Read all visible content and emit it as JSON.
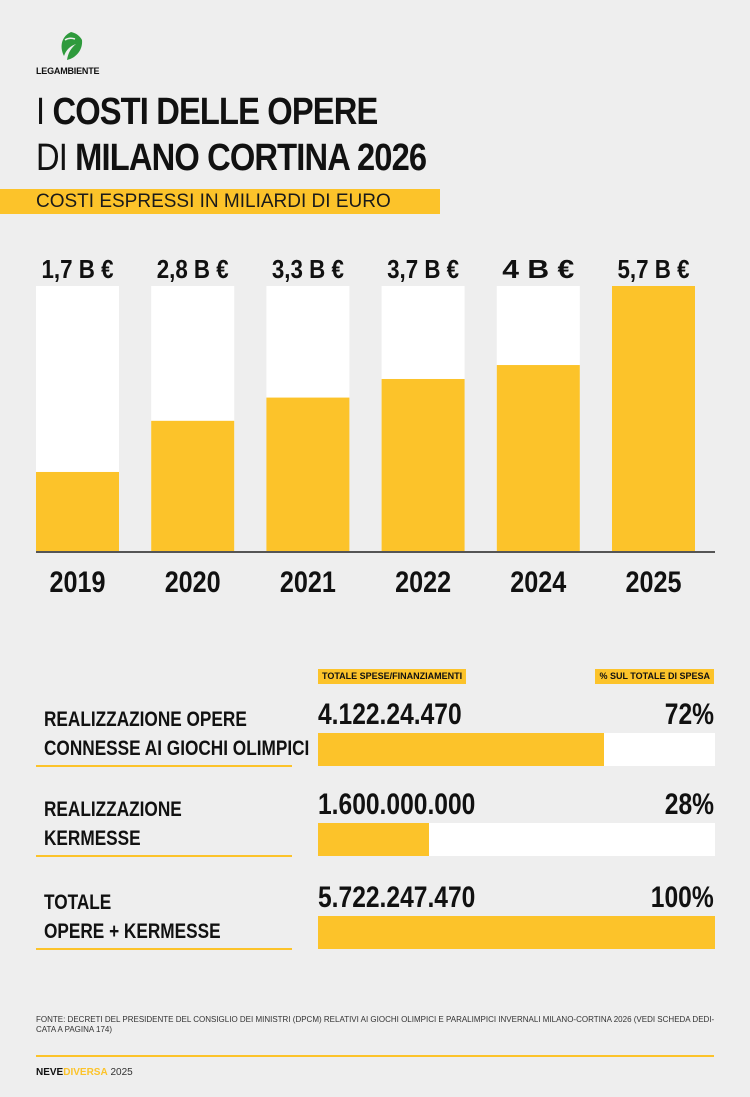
{
  "brand": {
    "logo_text": "LEGAMBIENTE",
    "logo_color": "#2e9a3c"
  },
  "title": {
    "line1_prefix": "I",
    "line1_main": "COSTI DELLE OPERE",
    "line2_prefix": "DI",
    "line2_main": "MILANO CORTINA 2026"
  },
  "subtitle": "COSTI ESPRESSI IN MILIARDI DI EURO",
  "colors": {
    "accent": "#fcc32a",
    "bar_track": "#ffffff",
    "background": "#eeeeee",
    "text": "#111111"
  },
  "chart_data": {
    "type": "bar",
    "title": "",
    "subtitle": "COSTI ESPRESSI IN MILIARDI DI EURO",
    "categories": [
      "2019",
      "2020",
      "2021",
      "2022",
      "2024",
      "2025"
    ],
    "values": [
      1.7,
      2.8,
      3.3,
      3.7,
      4.0,
      5.7
    ],
    "value_labels": [
      "1,7 B €",
      "2,8 B €",
      "3,3 B €",
      "3,7 B €",
      "4 B €",
      "5,7 B €"
    ],
    "ylim": [
      0,
      5.7
    ],
    "xlabel": "",
    "ylabel": "",
    "grid": false,
    "legend": "none"
  },
  "table": {
    "header_total": "TOTALE SPESE/FINANZIAMENTI",
    "header_pct": "% SUL TOTALE DI SPESA",
    "rows": [
      {
        "label_line1": "REALIZZAZIONE OPERE",
        "label_line2": "CONNESSE AI GIOCHI OLIMPICI",
        "value": "4.122.24.470",
        "pct": "72%",
        "share": 72
      },
      {
        "label_line1": "REALIZZAZIONE",
        "label_line2": "KERMESSE",
        "value": "1.600.000.000",
        "pct": "28%",
        "share": 28
      },
      {
        "label_line1": "TOTALE",
        "label_line2": "OPERE + KERMESSE",
        "value": "5.722.247.470",
        "pct": "100%",
        "share": 100
      }
    ]
  },
  "footnote": "FONTE: DECRETI DEL PRESIDENTE DEL CONSIGLIO DEI MINISTRI (DPCM) RELATIVI AI GIOCHI OLIMPICI E PARALIMPICI INVERNALI MILANO-CORTINA 2026 (VEDI SCHEDA DEDI-CATA A PAGINA 174)",
  "footer": {
    "neve": "NEVE",
    "diversa": "DIVERSA",
    "year": "2025"
  }
}
